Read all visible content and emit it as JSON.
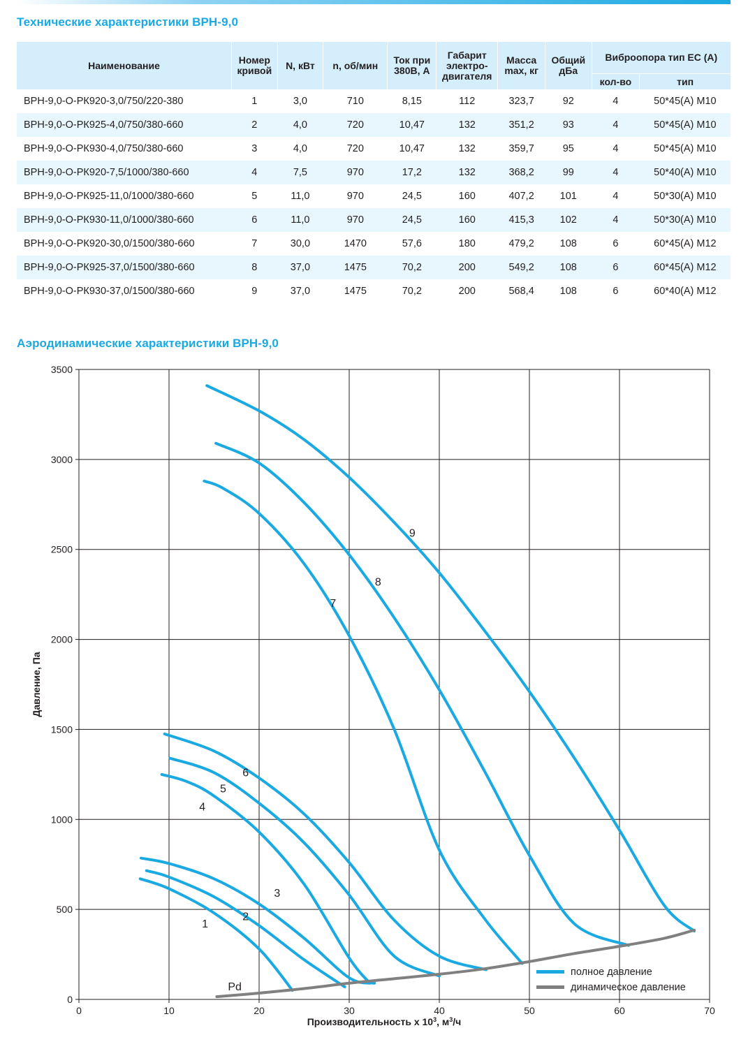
{
  "titles": {
    "specs": "Технические характеристики ВРН-9,0",
    "aero": "Аэродинамические характеристики ВРН-9,0"
  },
  "colors": {
    "accent": "#1ba9e1",
    "header_bg": "#d4eefb",
    "row_alt": "#e8f6fd",
    "total_pressure": "#1ba9e1",
    "dynamic_pressure": "#808080"
  },
  "table": {
    "headers": {
      "name": "Наименование",
      "curve": "Номер кривой",
      "power": "N, кВт",
      "rpm": "n, об/мин",
      "current": "Ток при 380В, А",
      "motor": "Габарит электро-двигателя",
      "mass": "Масса max, кг",
      "noise": "Общий дБа",
      "mount": "Виброопора тип ЕС (А)",
      "mount_count": "кол-во",
      "mount_type": "тип"
    },
    "rows": [
      [
        "ВРН-9,0-О-РК920-3,0/750/220-380",
        "1",
        "3,0",
        "710",
        "8,15",
        "112",
        "323,7",
        "92",
        "4",
        "50*45(А) М10"
      ],
      [
        "ВРН-9,0-О-РК925-4,0/750/380-660",
        "2",
        "4,0",
        "720",
        "10,47",
        "132",
        "351,2",
        "93",
        "4",
        "50*45(А) М10"
      ],
      [
        "ВРН-9,0-О-РК930-4,0/750/380-660",
        "3",
        "4,0",
        "720",
        "10,47",
        "132",
        "359,7",
        "95",
        "4",
        "50*45(А) М10"
      ],
      [
        "ВРН-9,0-О-РК920-7,5/1000/380-660",
        "4",
        "7,5",
        "970",
        "17,2",
        "132",
        "368,2",
        "99",
        "4",
        "50*40(А) М10"
      ],
      [
        "ВРН-9,0-О-РК925-11,0/1000/380-660",
        "5",
        "11,0",
        "970",
        "24,5",
        "160",
        "407,2",
        "101",
        "4",
        "50*30(А) М10"
      ],
      [
        "ВРН-9,0-О-РК930-11,0/1000/380-660",
        "6",
        "11,0",
        "970",
        "24,5",
        "160",
        "415,3",
        "102",
        "4",
        "50*30(А) М10"
      ],
      [
        "ВРН-9,0-О-РК920-30,0/1500/380-660",
        "7",
        "30,0",
        "1470",
        "57,6",
        "180",
        "479,2",
        "108",
        "6",
        "60*45(А) М12"
      ],
      [
        "ВРН-9,0-О-РК925-37,0/1500/380-660",
        "8",
        "37,0",
        "1475",
        "70,2",
        "200",
        "549,2",
        "108",
        "6",
        "60*45(А) М12"
      ],
      [
        "ВРН-9,0-О-РК930-37,0/1500/380-660",
        "9",
        "37,0",
        "1475",
        "70,2",
        "200",
        "568,4",
        "108",
        "6",
        "60*40(А) М12"
      ]
    ]
  },
  "chart_data": {
    "type": "line",
    "xlabel": "Производительность х 10³, м³/ч",
    "ylabel": "Давление, Па",
    "xlim": [
      0,
      70
    ],
    "ylim": [
      0,
      3500
    ],
    "xticks": [
      0,
      10,
      20,
      30,
      40,
      50,
      60,
      70
    ],
    "yticks": [
      0,
      500,
      1000,
      1500,
      2000,
      2500,
      3000,
      3500
    ],
    "grid": true,
    "legend_position": "bottom-right",
    "legend": [
      "полное давление",
      "динамическое давление"
    ],
    "series": [
      {
        "name": "1",
        "group": "total",
        "label_at": [
          14,
          400
        ],
        "points": [
          [
            6.8,
            670
          ],
          [
            10,
            615
          ],
          [
            15,
            480
          ],
          [
            20,
            280
          ],
          [
            23.7,
            50
          ]
        ]
      },
      {
        "name": "2",
        "group": "total",
        "label_at": [
          18.5,
          440
        ],
        "points": [
          [
            7.5,
            715
          ],
          [
            10,
            680
          ],
          [
            15,
            570
          ],
          [
            20,
            410
          ],
          [
            25,
            220
          ],
          [
            29.5,
            70
          ]
        ]
      },
      {
        "name": "3",
        "group": "total",
        "label_at": [
          22,
          570
        ],
        "points": [
          [
            6.9,
            785
          ],
          [
            10,
            755
          ],
          [
            15,
            670
          ],
          [
            20,
            530
          ],
          [
            25,
            340
          ],
          [
            30,
            120
          ],
          [
            32.8,
            90
          ]
        ]
      },
      {
        "name": "4",
        "group": "total",
        "label_at": [
          13.7,
          1050
        ],
        "points": [
          [
            9.2,
            1250
          ],
          [
            12,
            1210
          ],
          [
            15,
            1130
          ],
          [
            20,
            930
          ],
          [
            25,
            640
          ],
          [
            30,
            230
          ],
          [
            32.3,
            90
          ]
        ]
      },
      {
        "name": "5",
        "group": "total",
        "label_at": [
          16,
          1150
        ],
        "points": [
          [
            10.1,
            1340
          ],
          [
            15,
            1260
          ],
          [
            20,
            1090
          ],
          [
            25,
            870
          ],
          [
            30,
            580
          ],
          [
            35,
            240
          ],
          [
            40,
            130
          ]
        ]
      },
      {
        "name": "6",
        "group": "total",
        "label_at": [
          18.5,
          1240
        ],
        "points": [
          [
            9.5,
            1475
          ],
          [
            15,
            1380
          ],
          [
            20,
            1230
          ],
          [
            25,
            1030
          ],
          [
            30,
            760
          ],
          [
            35,
            440
          ],
          [
            40,
            240
          ],
          [
            45.2,
            165
          ]
        ]
      },
      {
        "name": "7",
        "group": "total",
        "label_at": [
          28.2,
          2180
        ],
        "points": [
          [
            13.9,
            2880
          ],
          [
            16,
            2840
          ],
          [
            20,
            2700
          ],
          [
            25,
            2420
          ],
          [
            30,
            2020
          ],
          [
            35,
            1500
          ],
          [
            40,
            830
          ],
          [
            45,
            450
          ],
          [
            49.2,
            200
          ]
        ]
      },
      {
        "name": "8",
        "group": "total",
        "label_at": [
          33.2,
          2300
        ],
        "points": [
          [
            15.2,
            3090
          ],
          [
            20,
            2980
          ],
          [
            25,
            2760
          ],
          [
            30,
            2470
          ],
          [
            35,
            2120
          ],
          [
            40,
            1720
          ],
          [
            45,
            1270
          ],
          [
            50,
            800
          ],
          [
            55,
            420
          ],
          [
            61,
            300
          ]
        ]
      },
      {
        "name": "9",
        "group": "total",
        "label_at": [
          37,
          2570
        ],
        "points": [
          [
            14.2,
            3410
          ],
          [
            20,
            3270
          ],
          [
            25,
            3110
          ],
          [
            30,
            2900
          ],
          [
            35,
            2650
          ],
          [
            40,
            2370
          ],
          [
            45,
            2050
          ],
          [
            50,
            1710
          ],
          [
            55,
            1340
          ],
          [
            60,
            940
          ],
          [
            65,
            520
          ],
          [
            68.3,
            380
          ]
        ]
      },
      {
        "name": "Pd",
        "group": "dynamic",
        "label_at": [
          17.3,
          50
        ],
        "points": [
          [
            15.3,
            15
          ],
          [
            20,
            35
          ],
          [
            25,
            60
          ],
          [
            30,
            90
          ],
          [
            35,
            115
          ],
          [
            40,
            140
          ],
          [
            45,
            170
          ],
          [
            50,
            210
          ],
          [
            55,
            255
          ],
          [
            60,
            295
          ],
          [
            65,
            340
          ],
          [
            68.3,
            385
          ]
        ]
      }
    ]
  }
}
